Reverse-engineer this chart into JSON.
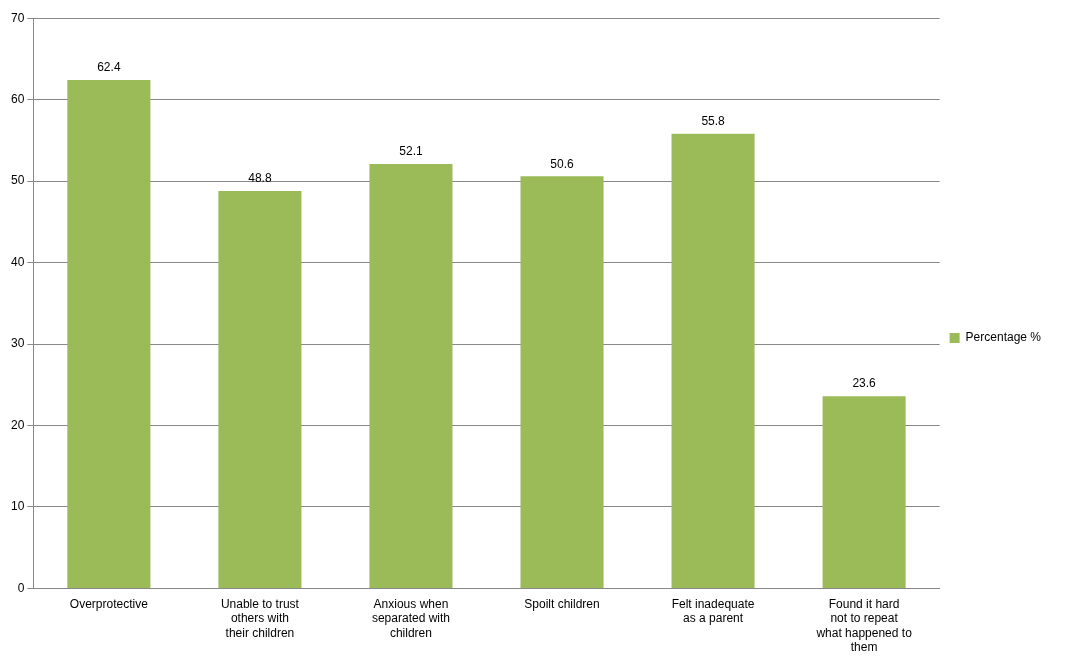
{
  "chart_data": {
    "type": "bar",
    "categories": [
      "Overprotective",
      "Unable to trust others with their children",
      "Anxious when separated with children",
      "Spoilt children",
      "Felt inadequate as a parent",
      "Found it hard not to repeat what happened to them"
    ],
    "series": [
      {
        "name": "Percentage %",
        "color": "#9bbb59",
        "values": [
          62.4,
          48.8,
          52.1,
          50.6,
          55.8,
          23.6
        ]
      }
    ],
    "ylim": [
      0,
      70
    ],
    "yticks": [
      0,
      10,
      20,
      30,
      40,
      50,
      60,
      70
    ],
    "grid": "y",
    "legend": "right",
    "data_labels": true
  }
}
